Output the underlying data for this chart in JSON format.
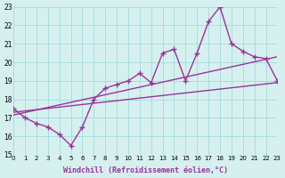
{
  "xlabel": "Windchill (Refroidissement éolien,°C)",
  "x_data": [
    0,
    1,
    2,
    3,
    4,
    5,
    6,
    7,
    8,
    9,
    10,
    11,
    12,
    13,
    14,
    15,
    16,
    17,
    18,
    19,
    20,
    21,
    22,
    23
  ],
  "y_data": [
    17.5,
    17.0,
    16.7,
    16.5,
    16.1,
    15.5,
    16.5,
    18.0,
    18.6,
    18.8,
    19.0,
    19.4,
    18.9,
    20.5,
    20.7,
    19.0,
    20.5,
    22.2,
    23.0,
    21.0,
    20.6,
    20.3,
    20.2,
    19.0
  ],
  "line1_x": [
    0,
    23
  ],
  "line1_y": [
    17.3,
    18.9
  ],
  "line2_x": [
    0,
    23
  ],
  "line2_y": [
    17.15,
    20.3
  ],
  "bg_color": "#d6f0f0",
  "grid_color": "#aadddd",
  "line_color": "#993399",
  "xlim": [
    0,
    23
  ],
  "ylim": [
    15,
    23
  ],
  "yticks": [
    15,
    16,
    17,
    18,
    19,
    20,
    21,
    22,
    23
  ],
  "xticks": [
    0,
    1,
    2,
    3,
    4,
    5,
    6,
    7,
    8,
    9,
    10,
    11,
    12,
    13,
    14,
    15,
    16,
    17,
    18,
    19,
    20,
    21,
    22,
    23
  ]
}
